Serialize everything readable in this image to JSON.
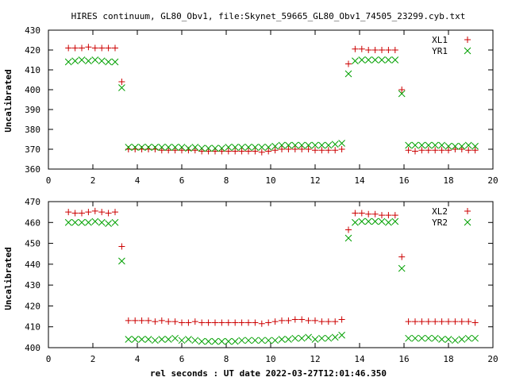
{
  "title": "HIRES continuum, GL80_Obv1, file:Skynet_59665_GL80_Obv1_74505_23299.cyb.txt",
  "xlabel": "rel seconds : UT date 2022-03-27T12:01:46.350",
  "colors": {
    "series_a": "#cc0000",
    "series_b": "#00a000"
  },
  "chart_data": [
    {
      "type": "scatter",
      "ylabel": "Uncalibrated",
      "xlim": [
        0,
        20
      ],
      "ylim": [
        360,
        430
      ],
      "xticks": [
        0,
        2,
        4,
        6,
        8,
        10,
        12,
        14,
        16,
        18,
        20
      ],
      "yticks": [
        360,
        370,
        380,
        390,
        400,
        410,
        420,
        430
      ],
      "legend": "top-right",
      "x": [
        0.9,
        1.2,
        1.5,
        1.8,
        2.1,
        2.4,
        2.7,
        3.0,
        3.3,
        3.6,
        3.9,
        4.2,
        4.5,
        4.8,
        5.1,
        5.4,
        5.7,
        6.0,
        6.3,
        6.6,
        6.9,
        7.2,
        7.5,
        7.8,
        8.1,
        8.4,
        8.7,
        9.0,
        9.3,
        9.6,
        9.9,
        10.2,
        10.5,
        10.8,
        11.1,
        11.4,
        11.7,
        12.0,
        12.3,
        12.6,
        12.9,
        13.2,
        13.5,
        13.8,
        14.1,
        14.4,
        14.7,
        15.0,
        15.3,
        15.6,
        15.9,
        16.2,
        16.5,
        16.8,
        17.1,
        17.4,
        17.7,
        18.0,
        18.3,
        18.6,
        18.9,
        19.2
      ],
      "series": [
        {
          "name": "XL1",
          "marker": "plus",
          "values": [
            421,
            421,
            421,
            421.5,
            421,
            421,
            421,
            421,
            404,
            370,
            370,
            370,
            370,
            370,
            369.5,
            369.5,
            369.5,
            369.5,
            369.5,
            369.5,
            369,
            369,
            369,
            369,
            369,
            369,
            369,
            369,
            369,
            368.5,
            369,
            369.5,
            370,
            370,
            370,
            370,
            370,
            369.5,
            369.5,
            369.5,
            369.5,
            370,
            413,
            420.5,
            420.5,
            420,
            420,
            420,
            420,
            420,
            400,
            369.5,
            369,
            369.5,
            369.5,
            369.5,
            369.5,
            369.5,
            370,
            370,
            369.5,
            369.5
          ]
        },
        {
          "name": "YR1",
          "marker": "cross",
          "values": [
            414,
            414.5,
            415,
            414.5,
            415,
            414.5,
            414,
            414,
            401,
            371,
            371,
            371,
            371,
            371,
            371,
            371,
            371,
            371,
            370.5,
            371,
            370.5,
            370.5,
            370.5,
            370.5,
            371,
            371,
            371,
            371,
            371,
            371,
            371,
            371.5,
            372,
            372,
            372,
            372,
            372,
            372,
            372,
            372,
            372.5,
            373,
            408,
            414.5,
            415,
            415,
            415,
            415,
            415,
            415,
            398,
            372,
            372,
            372,
            372,
            372,
            372,
            371.5,
            371.5,
            371.5,
            372,
            371.5
          ]
        }
      ]
    },
    {
      "type": "scatter",
      "ylabel": "Uncalibrated",
      "xlim": [
        0,
        20
      ],
      "ylim": [
        400,
        470
      ],
      "xticks": [
        0,
        2,
        4,
        6,
        8,
        10,
        12,
        14,
        16,
        18,
        20
      ],
      "yticks": [
        400,
        410,
        420,
        430,
        440,
        450,
        460,
        470
      ],
      "legend": "top-right",
      "x": [
        0.9,
        1.2,
        1.5,
        1.8,
        2.1,
        2.4,
        2.7,
        3.0,
        3.3,
        3.6,
        3.9,
        4.2,
        4.5,
        4.8,
        5.1,
        5.4,
        5.7,
        6.0,
        6.3,
        6.6,
        6.9,
        7.2,
        7.5,
        7.8,
        8.1,
        8.4,
        8.7,
        9.0,
        9.3,
        9.6,
        9.9,
        10.2,
        10.5,
        10.8,
        11.1,
        11.4,
        11.7,
        12.0,
        12.3,
        12.6,
        12.9,
        13.2,
        13.5,
        13.8,
        14.1,
        14.4,
        14.7,
        15.0,
        15.3,
        15.6,
        15.9,
        16.2,
        16.5,
        16.8,
        17.1,
        17.4,
        17.7,
        18.0,
        18.3,
        18.6,
        18.9,
        19.2
      ],
      "series": [
        {
          "name": "XL2",
          "marker": "plus",
          "values": [
            465,
            464.5,
            464.5,
            465,
            465.5,
            465,
            464.5,
            465,
            448.5,
            413,
            413,
            413,
            413,
            412.5,
            413,
            412.5,
            412.5,
            412,
            412,
            412.5,
            412,
            412,
            412,
            412,
            412,
            412,
            412,
            412,
            412,
            411.5,
            412,
            412.5,
            413,
            413,
            413.5,
            413.5,
            413,
            413,
            412.5,
            412.5,
            412.5,
            413.5,
            456.5,
            464.5,
            464.5,
            464,
            464,
            463.5,
            463.5,
            463.5,
            443.5,
            412.5,
            412.5,
            412.5,
            412.5,
            412.5,
            412.5,
            412.5,
            412.5,
            412.5,
            412.5,
            412
          ]
        },
        {
          "name": "YR2",
          "marker": "cross",
          "values": [
            460,
            460,
            460,
            460,
            460.5,
            460,
            459.5,
            460,
            441.5,
            404,
            404,
            404,
            404,
            403.5,
            404,
            404,
            404.5,
            403.5,
            404,
            403.5,
            403,
            403,
            403,
            403,
            403,
            403,
            403.5,
            403.5,
            403.5,
            403.5,
            403.5,
            403.5,
            404,
            404,
            404.5,
            404.5,
            405,
            404,
            404.5,
            404.5,
            405,
            406,
            452.5,
            460,
            460.5,
            460.5,
            460.5,
            460.5,
            460,
            460.5,
            438,
            404.5,
            404.5,
            404.5,
            404.5,
            404.5,
            404,
            404,
            403.5,
            404,
            404.5,
            404.5
          ]
        }
      ]
    }
  ]
}
